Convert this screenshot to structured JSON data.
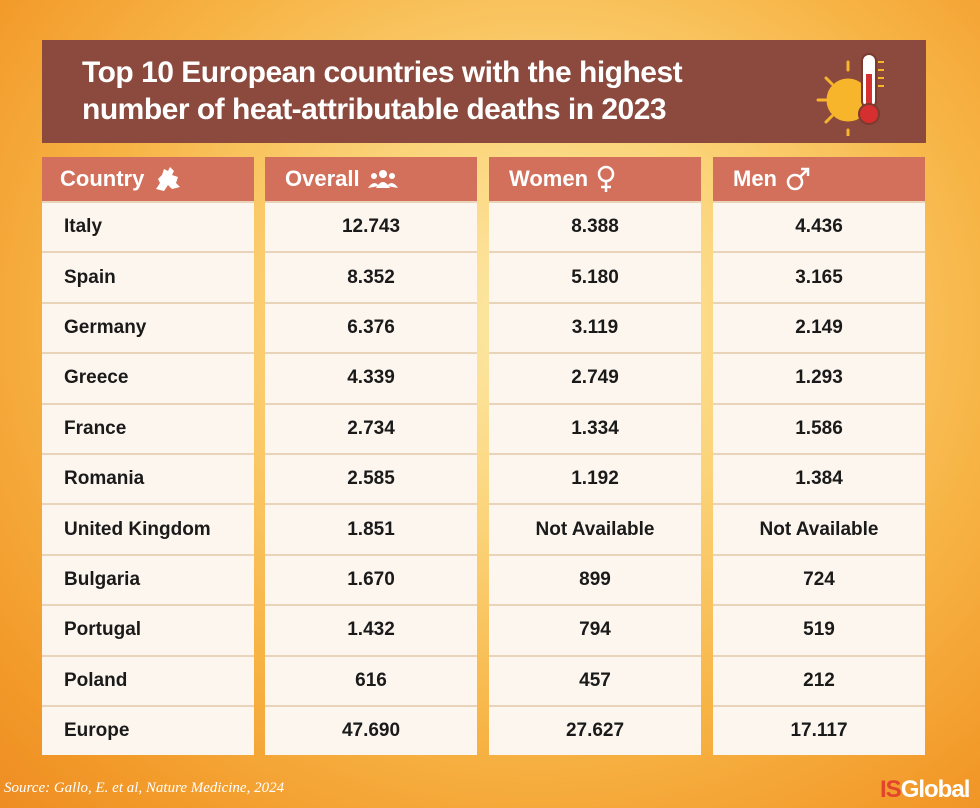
{
  "title": "Top 10 European countries with the highest number of heat-attributable deaths in 2023",
  "source": "Source: Gallo, E. et al, Nature Medicine, 2024",
  "logo": {
    "prefix": "IS",
    "suffix": "Global"
  },
  "icons": {
    "title": "thermometer-sun-icon",
    "country": "europe-map-icon",
    "overall": "people-group-icon",
    "women": "female-symbol-icon",
    "men": "male-symbol-icon"
  },
  "colors": {
    "title_bg": "#8b4a3d",
    "header_bg": "#d3705b",
    "cell_bg": "#fdf6ef"
  },
  "chart_data": {
    "type": "table",
    "title": "Top 10 European countries with the highest number of heat-attributable deaths in 2023",
    "columns": [
      "Country",
      "Overall",
      "Women",
      "Men"
    ],
    "rows": [
      {
        "country": "Italy",
        "overall": "12.743",
        "women": "8.388",
        "men": "4.436"
      },
      {
        "country": "Spain",
        "overall": "8.352",
        "women": "5.180",
        "men": "3.165"
      },
      {
        "country": "Germany",
        "overall": "6.376",
        "women": "3.119",
        "men": "2.149"
      },
      {
        "country": "Greece",
        "overall": "4.339",
        "women": "2.749",
        "men": "1.293"
      },
      {
        "country": "France",
        "overall": "2.734",
        "women": "1.334",
        "men": "1.586"
      },
      {
        "country": "Romania",
        "overall": "2.585",
        "women": "1.192",
        "men": "1.384"
      },
      {
        "country": "United Kingdom",
        "overall": "1.851",
        "women": "Not Available",
        "men": "Not Available"
      },
      {
        "country": "Bulgaria",
        "overall": "1.670",
        "women": "899",
        "men": "724"
      },
      {
        "country": "Portugal",
        "overall": "1.432",
        "women": "794",
        "men": "519"
      },
      {
        "country": "Poland",
        "overall": "616",
        "women": "457",
        "men": "212"
      },
      {
        "country": "Europe",
        "overall": "47.690",
        "women": "27.627",
        "men": "17.117"
      }
    ]
  }
}
